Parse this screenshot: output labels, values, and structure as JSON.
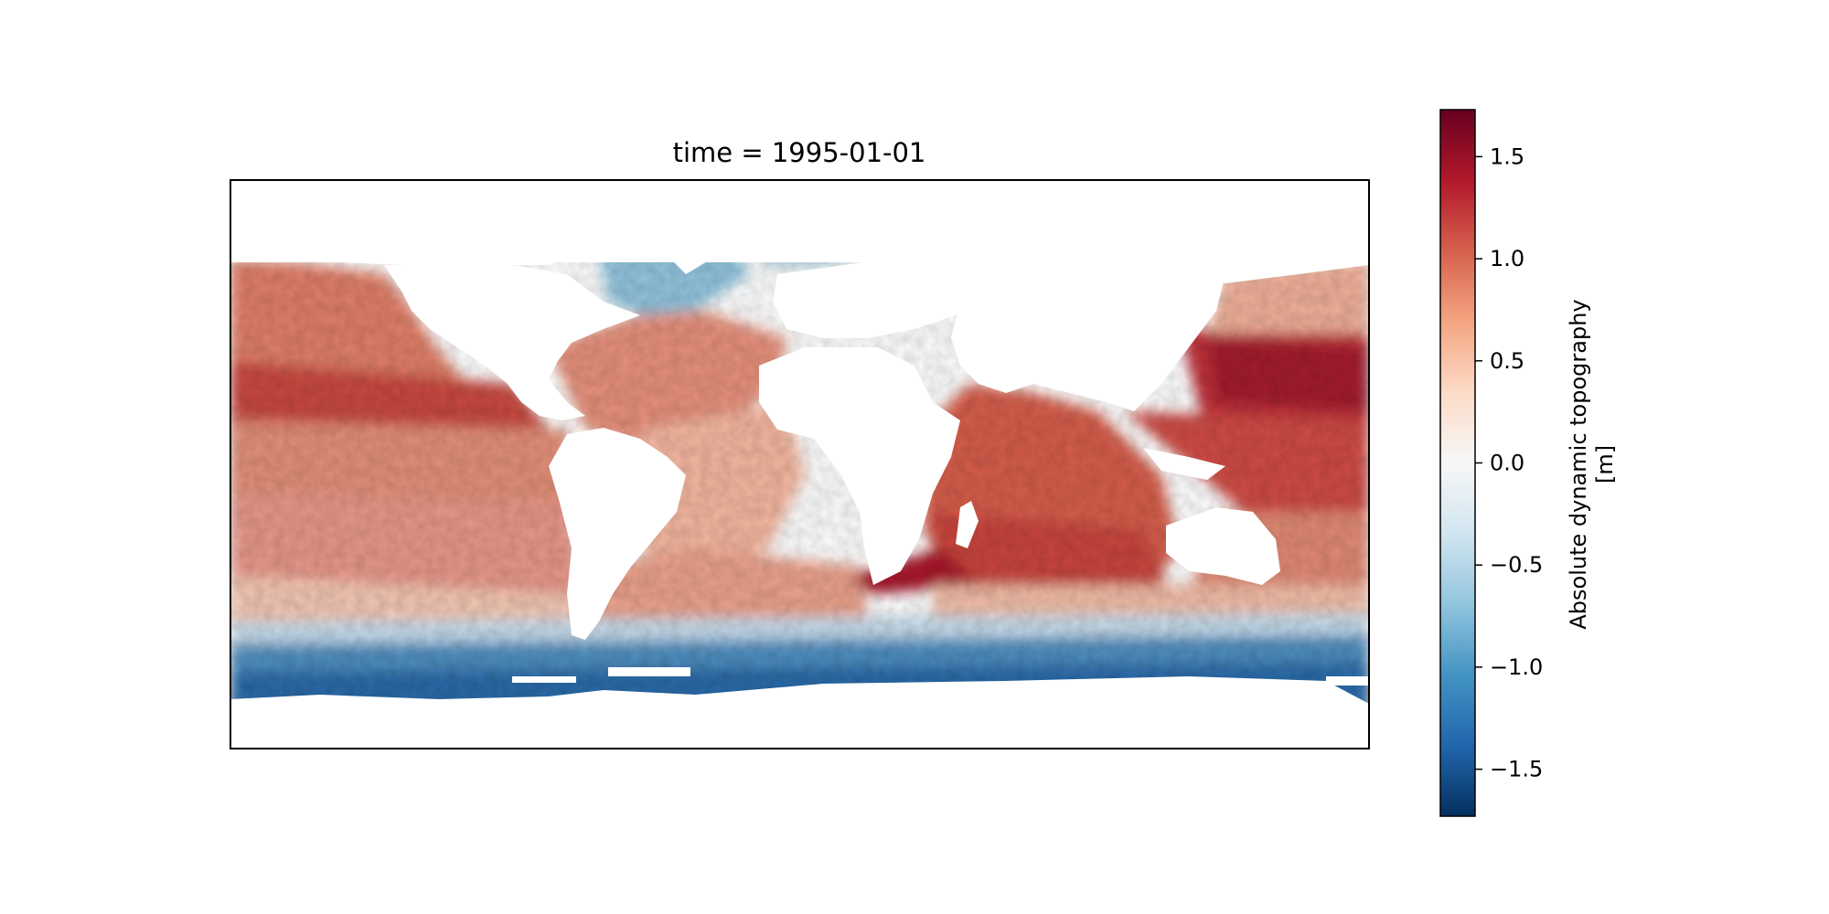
{
  "title": "time = 1995-01-01",
  "colorbar": {
    "label_line1": "Absolute dynamic topography",
    "label_line2": "[m]",
    "vmin": -1.73,
    "vmax": 1.73,
    "colormap": "RdBu_r",
    "ticks": [
      {
        "value": 1.5,
        "label": "1.5"
      },
      {
        "value": 1.0,
        "label": "1.0"
      },
      {
        "value": 0.5,
        "label": "0.5"
      },
      {
        "value": 0.0,
        "label": "0.0"
      },
      {
        "value": -0.5,
        "label": "−0.5"
      },
      {
        "value": -1.0,
        "label": "−1.0"
      },
      {
        "value": -1.5,
        "label": "−1.5"
      }
    ],
    "stops": [
      "#67001f",
      "#b2182b",
      "#d6604d",
      "#f4a582",
      "#fddbc7",
      "#f7f7f7",
      "#d1e5f0",
      "#92c5de",
      "#4393c3",
      "#2166ac",
      "#053061"
    ]
  },
  "map": {
    "projection": "equirectangular",
    "land_color": "#ffffff",
    "frame_color": "#000000"
  }
}
